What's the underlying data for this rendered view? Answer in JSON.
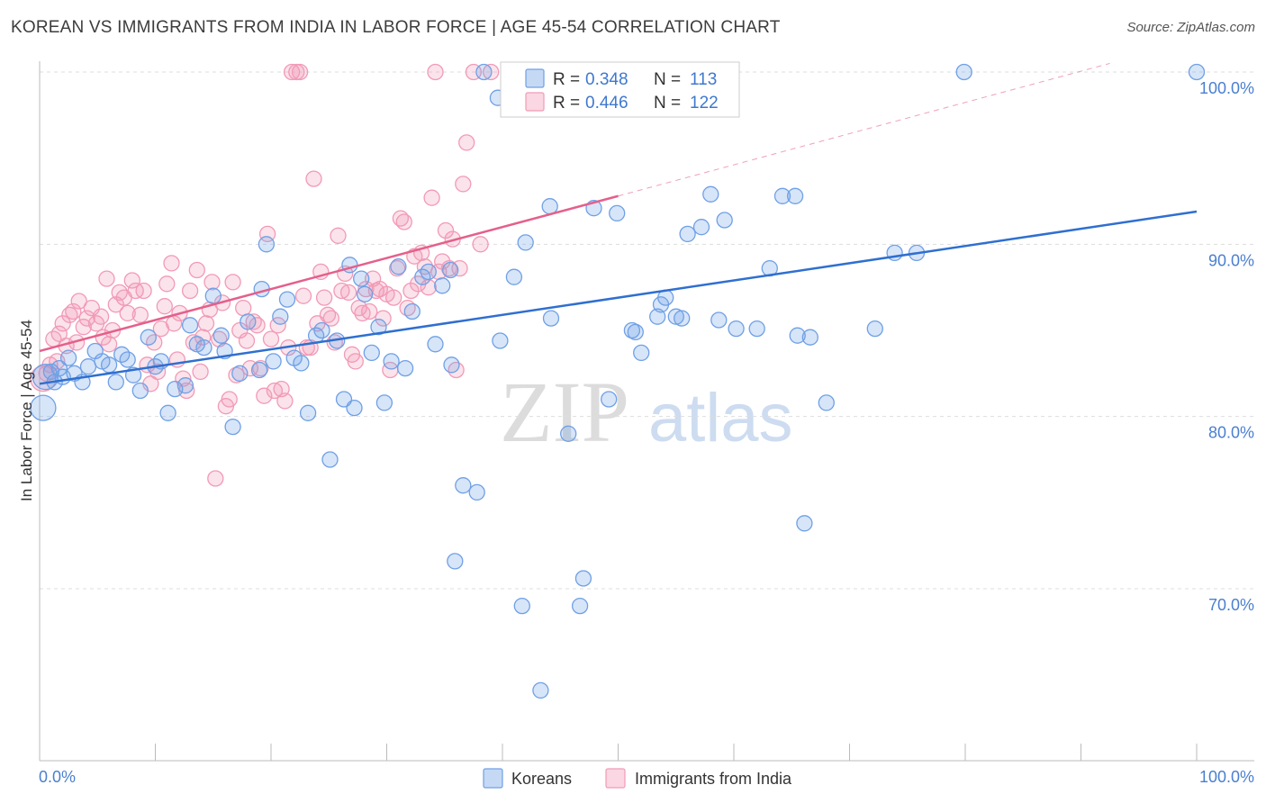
{
  "title": "KOREAN VS IMMIGRANTS FROM INDIA IN LABOR FORCE | AGE 45-54 CORRELATION CHART",
  "source": "Source: ZipAtlas.com",
  "watermark": {
    "zip": "ZIP",
    "atlas": "atlas"
  },
  "chart_data": {
    "type": "scatter",
    "xlabel": "",
    "ylabel": "In Labor Force | Age 45-54",
    "xlim": [
      0,
      100
    ],
    "ylim": [
      61.5,
      101.5
    ],
    "x_tick_labels": [
      "0.0%",
      "100.0%"
    ],
    "y_ticks": [
      70,
      80,
      90,
      100
    ],
    "y_tick_labels": [
      "70.0%",
      "80.0%",
      "90.0%",
      "100.0%"
    ],
    "grid": "horizontal dashed",
    "legend_position": "top-center",
    "series": [
      {
        "name": "Koreans",
        "color": "#6fa0e6",
        "line_color": "#2f6fd0",
        "R": "0.348",
        "N": "113",
        "trend": {
          "x": [
            0,
            100
          ],
          "y": [
            81.9,
            91.9
          ]
        },
        "points": [
          [
            0.3,
            80.5
          ],
          [
            0.5,
            82.3
          ],
          [
            1.0,
            82.6
          ],
          [
            1.3,
            82.0
          ],
          [
            1.7,
            82.8
          ],
          [
            2.0,
            82.3
          ],
          [
            2.5,
            83.4
          ],
          [
            3.0,
            82.5
          ],
          [
            3.7,
            82.0
          ],
          [
            4.2,
            82.9
          ],
          [
            4.8,
            83.8
          ],
          [
            5.4,
            83.2
          ],
          [
            6.0,
            83.0
          ],
          [
            6.6,
            82.0
          ],
          [
            7.1,
            83.6
          ],
          [
            7.6,
            83.3
          ],
          [
            8.1,
            82.4
          ],
          [
            8.7,
            81.5
          ],
          [
            9.4,
            84.6
          ],
          [
            10.0,
            82.9
          ],
          [
            10.5,
            83.2
          ],
          [
            11.1,
            80.2
          ],
          [
            11.7,
            81.6
          ],
          [
            12.6,
            81.8
          ],
          [
            13.0,
            85.3
          ],
          [
            13.6,
            84.2
          ],
          [
            14.2,
            84.0
          ],
          [
            15.0,
            87.0
          ],
          [
            15.7,
            84.7
          ],
          [
            16.0,
            83.8
          ],
          [
            16.7,
            79.4
          ],
          [
            17.3,
            82.5
          ],
          [
            18.0,
            85.5
          ],
          [
            19.0,
            82.7
          ],
          [
            19.2,
            87.4
          ],
          [
            19.6,
            90.0
          ],
          [
            20.2,
            83.2
          ],
          [
            20.8,
            85.8
          ],
          [
            21.4,
            86.8
          ],
          [
            22.0,
            83.4
          ],
          [
            22.6,
            83.1
          ],
          [
            23.2,
            80.2
          ],
          [
            23.9,
            84.7
          ],
          [
            24.4,
            85.0
          ],
          [
            25.1,
            77.5
          ],
          [
            25.7,
            84.4
          ],
          [
            26.3,
            81.0
          ],
          [
            26.8,
            88.8
          ],
          [
            27.2,
            80.5
          ],
          [
            27.8,
            88.0
          ],
          [
            28.1,
            87.1
          ],
          [
            28.7,
            83.7
          ],
          [
            29.3,
            85.2
          ],
          [
            29.8,
            80.8
          ],
          [
            30.4,
            83.2
          ],
          [
            31.0,
            88.7
          ],
          [
            31.6,
            82.8
          ],
          [
            32.2,
            86.1
          ],
          [
            33.1,
            88.1
          ],
          [
            33.6,
            88.4
          ],
          [
            34.2,
            84.2
          ],
          [
            34.8,
            87.6
          ],
          [
            35.6,
            83.0
          ],
          [
            35.9,
            71.6
          ],
          [
            35.5,
            88.5
          ],
          [
            36.6,
            76.0
          ],
          [
            37.8,
            75.6
          ],
          [
            38.4,
            100.0
          ],
          [
            39.6,
            98.5
          ],
          [
            39.8,
            84.4
          ],
          [
            41.0,
            88.1
          ],
          [
            41.7,
            69.0
          ],
          [
            42.0,
            90.1
          ],
          [
            43.3,
            64.1
          ],
          [
            44.1,
            92.2
          ],
          [
            44.2,
            85.7
          ],
          [
            45.3,
            100.0
          ],
          [
            45.7,
            79.0
          ],
          [
            47.0,
            70.6
          ],
          [
            46.7,
            69.0
          ],
          [
            47.9,
            92.1
          ],
          [
            49.2,
            81.0
          ],
          [
            49.9,
            91.8
          ],
          [
            51.2,
            85.0
          ],
          [
            51.5,
            84.9
          ],
          [
            52.0,
            83.7
          ],
          [
            53.4,
            85.8
          ],
          [
            53.7,
            86.5
          ],
          [
            54.1,
            86.9
          ],
          [
            55.0,
            85.8
          ],
          [
            55.5,
            85.7
          ],
          [
            56.0,
            90.6
          ],
          [
            57.2,
            91.0
          ],
          [
            58.0,
            92.9
          ],
          [
            58.7,
            85.6
          ],
          [
            59.2,
            91.4
          ],
          [
            60.2,
            85.1
          ],
          [
            62.0,
            85.1
          ],
          [
            63.1,
            88.6
          ],
          [
            64.2,
            92.8
          ],
          [
            65.3,
            92.8
          ],
          [
            65.5,
            84.7
          ],
          [
            66.1,
            73.8
          ],
          [
            66.6,
            84.6
          ],
          [
            68.0,
            80.8
          ],
          [
            72.2,
            85.1
          ],
          [
            73.9,
            89.5
          ],
          [
            75.8,
            89.5
          ],
          [
            79.9,
            100.0
          ],
          [
            100.0,
            100.0
          ]
        ]
      },
      {
        "name": "Immigrants from India",
        "color": "#f29ab6",
        "line_color": "#e4608b",
        "R": "0.446",
        "N": "122",
        "trend": {
          "x": [
            0,
            50
          ],
          "y": [
            83.8,
            92.8
          ]
        },
        "extension": {
          "x": [
            50,
            92.5
          ],
          "y": [
            92.8,
            100.5
          ]
        },
        "points": [
          [
            0.3,
            82.2
          ],
          [
            0.6,
            82.5
          ],
          [
            0.9,
            83.0
          ],
          [
            1.2,
            84.5
          ],
          [
            1.5,
            83.2
          ],
          [
            1.7,
            84.8
          ],
          [
            2.0,
            85.4
          ],
          [
            2.3,
            84.1
          ],
          [
            2.6,
            85.9
          ],
          [
            2.9,
            86.1
          ],
          [
            3.2,
            84.3
          ],
          [
            3.4,
            86.7
          ],
          [
            3.8,
            85.2
          ],
          [
            4.1,
            85.7
          ],
          [
            4.5,
            86.3
          ],
          [
            4.9,
            85.4
          ],
          [
            5.3,
            85.8
          ],
          [
            5.5,
            84.6
          ],
          [
            5.8,
            88.0
          ],
          [
            6.0,
            84.2
          ],
          [
            6.3,
            85.0
          ],
          [
            6.6,
            86.5
          ],
          [
            6.9,
            87.2
          ],
          [
            7.3,
            86.9
          ],
          [
            7.6,
            86.0
          ],
          [
            8.0,
            87.9
          ],
          [
            8.3,
            87.3
          ],
          [
            8.7,
            85.9
          ],
          [
            9.0,
            87.3
          ],
          [
            9.3,
            83.0
          ],
          [
            9.6,
            81.9
          ],
          [
            9.9,
            84.3
          ],
          [
            10.2,
            82.6
          ],
          [
            10.5,
            85.1
          ],
          [
            10.8,
            86.4
          ],
          [
            11.0,
            87.7
          ],
          [
            11.4,
            88.9
          ],
          [
            11.6,
            85.4
          ],
          [
            11.9,
            83.3
          ],
          [
            12.1,
            86.0
          ],
          [
            12.4,
            82.2
          ],
          [
            12.7,
            81.5
          ],
          [
            13.0,
            87.3
          ],
          [
            13.3,
            84.3
          ],
          [
            13.6,
            88.5
          ],
          [
            13.9,
            82.6
          ],
          [
            14.1,
            84.6
          ],
          [
            14.4,
            85.4
          ],
          [
            14.7,
            86.2
          ],
          [
            14.9,
            87.8
          ],
          [
            15.2,
            76.4
          ],
          [
            15.5,
            84.5
          ],
          [
            15.8,
            86.6
          ],
          [
            16.1,
            80.6
          ],
          [
            16.4,
            81.0
          ],
          [
            16.7,
            87.8
          ],
          [
            17.0,
            82.4
          ],
          [
            17.3,
            85.0
          ],
          [
            17.6,
            86.3
          ],
          [
            17.9,
            84.4
          ],
          [
            18.2,
            82.8
          ],
          [
            18.5,
            85.5
          ],
          [
            18.8,
            85.3
          ],
          [
            19.1,
            82.8
          ],
          [
            19.4,
            81.2
          ],
          [
            19.7,
            90.6
          ],
          [
            20.0,
            84.5
          ],
          [
            20.3,
            81.5
          ],
          [
            20.6,
            85.3
          ],
          [
            20.9,
            81.6
          ],
          [
            21.2,
            80.9
          ],
          [
            21.5,
            84.0
          ],
          [
            21.8,
            100.0
          ],
          [
            22.2,
            100.0
          ],
          [
            22.5,
            100.0
          ],
          [
            22.8,
            87.0
          ],
          [
            23.1,
            84.0
          ],
          [
            23.4,
            84.0
          ],
          [
            23.7,
            93.8
          ],
          [
            24.0,
            85.4
          ],
          [
            24.3,
            88.4
          ],
          [
            24.6,
            86.9
          ],
          [
            24.9,
            85.9
          ],
          [
            25.2,
            85.7
          ],
          [
            25.5,
            84.3
          ],
          [
            25.8,
            90.5
          ],
          [
            26.1,
            87.3
          ],
          [
            26.4,
            88.3
          ],
          [
            26.7,
            87.2
          ],
          [
            27.0,
            83.6
          ],
          [
            27.3,
            83.2
          ],
          [
            27.6,
            86.3
          ],
          [
            27.9,
            86.0
          ],
          [
            28.2,
            87.4
          ],
          [
            28.5,
            86.1
          ],
          [
            28.8,
            88.0
          ],
          [
            29.1,
            87.3
          ],
          [
            29.4,
            87.4
          ],
          [
            29.7,
            85.7
          ],
          [
            30.0,
            87.1
          ],
          [
            30.3,
            82.7
          ],
          [
            30.6,
            86.9
          ],
          [
            30.9,
            88.6
          ],
          [
            31.2,
            91.5
          ],
          [
            31.5,
            91.3
          ],
          [
            31.8,
            86.3
          ],
          [
            32.1,
            87.3
          ],
          [
            32.4,
            89.3
          ],
          [
            32.7,
            87.7
          ],
          [
            33.0,
            89.5
          ],
          [
            33.3,
            88.7
          ],
          [
            33.6,
            87.5
          ],
          [
            33.9,
            92.7
          ],
          [
            34.2,
            100.0
          ],
          [
            34.5,
            88.4
          ],
          [
            34.8,
            89.0
          ],
          [
            35.1,
            90.8
          ],
          [
            35.4,
            88.6
          ],
          [
            35.7,
            90.3
          ],
          [
            36.0,
            82.7
          ],
          [
            36.3,
            88.6
          ],
          [
            36.6,
            93.5
          ],
          [
            36.9,
            95.9
          ],
          [
            37.5,
            100.0
          ],
          [
            38.1,
            90.0
          ],
          [
            39.0,
            100.0
          ]
        ]
      }
    ]
  }
}
